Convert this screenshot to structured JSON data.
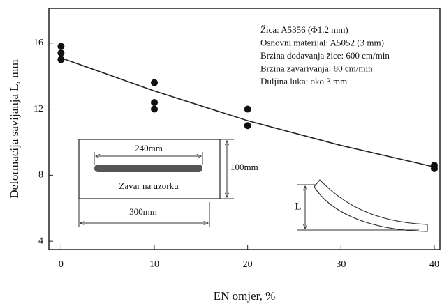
{
  "chart_data": {
    "type": "scatter",
    "x_label": "EN omjer, %",
    "y_label": "Deformacija savijanja L, mm",
    "x": [
      0,
      0,
      0,
      10,
      10,
      10,
      20,
      20,
      40,
      40
    ],
    "values": [
      15.8,
      15.4,
      15.0,
      13.6,
      12.4,
      12.0,
      12.0,
      11.0,
      8.6,
      8.4
    ],
    "color": "#111111",
    "fit": {
      "x": [
        0,
        10,
        20,
        30,
        40
      ],
      "y": [
        15.1,
        13.1,
        11.3,
        9.8,
        8.5
      ],
      "color": "#222222"
    },
    "xlim": [
      -1.3,
      40.6
    ],
    "ylim": [
      3.5,
      18.1
    ],
    "xticks": [
      0,
      10,
      20,
      30,
      40
    ],
    "yticks": [
      4,
      8,
      12,
      16
    ],
    "annotations": [
      "Žica: A5356 (Φ1.2 mm)",
      "Osnovni materijal: A5052 (3 mm)",
      "Brzina dodavanja žice: 600 cm/min",
      "Brzina zavarivanja: 80 cm/min",
      "Duljina luka: oko 3 mm"
    ],
    "inset": {
      "weld_length": "240mm",
      "width": "100mm",
      "caption": "Zavar na uzorku",
      "length": "300mm",
      "deflection": "L"
    }
  }
}
